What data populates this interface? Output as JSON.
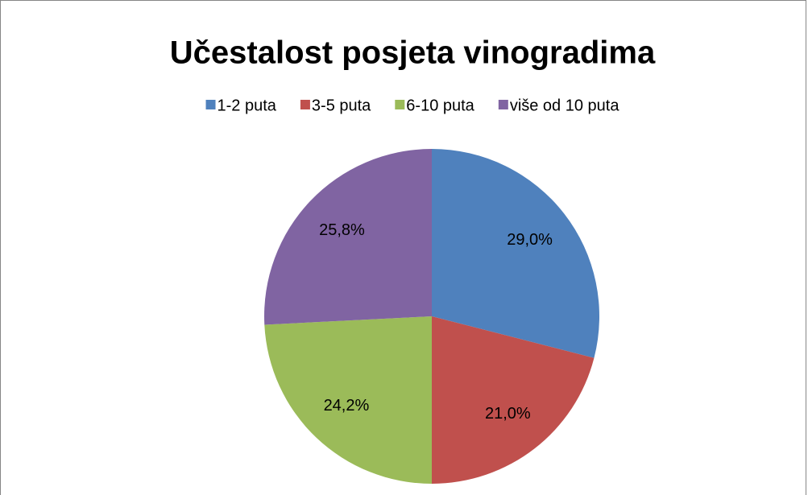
{
  "chart_data": {
    "type": "pie",
    "title": "Učestalost posjeta vinogradima",
    "categories": [
      "1-2 puta",
      "3-5 puta",
      "6-10 puta",
      "više od 10 puta"
    ],
    "values": [
      29.0,
      21.0,
      24.2,
      25.8
    ],
    "value_labels": [
      "29,0%",
      "21,0%",
      "24,2%",
      "25,8%"
    ],
    "colors": [
      "#4f81bd",
      "#c0504d",
      "#9bbb59",
      "#8064a2"
    ],
    "legend": "top"
  }
}
